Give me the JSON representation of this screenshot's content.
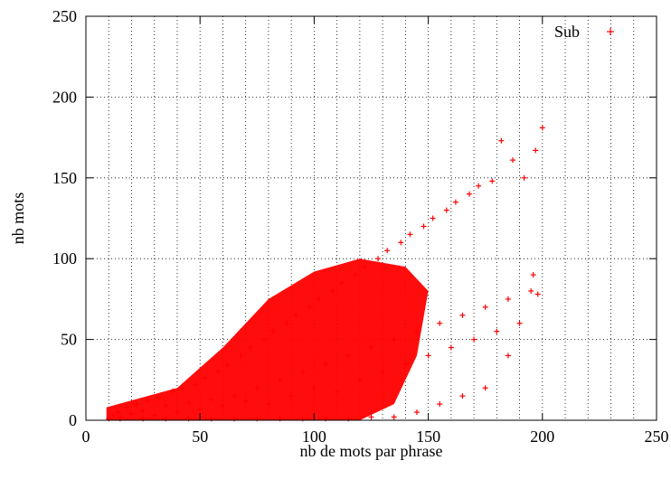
{
  "chart_data": {
    "type": "scatter",
    "title": "",
    "xlabel": "nb de mots par phrase",
    "ylabel": "nb mots",
    "xlim": [
      0,
      250
    ],
    "ylim": [
      0,
      250
    ],
    "x_ticks": [
      0,
      50,
      100,
      150,
      200,
      250
    ],
    "y_ticks": [
      0,
      50,
      100,
      150,
      200,
      250
    ],
    "x_tick_labels": [
      "0",
      "50",
      "100",
      "150",
      "200",
      "250"
    ],
    "y_tick_labels": [
      "0",
      "50",
      "100",
      "150",
      "200",
      "250"
    ],
    "grid": "dotted, on",
    "legend_position": "top-right",
    "series": [
      {
        "name": "Sub",
        "color": "#ff0000",
        "marker": "plus",
        "points": [
          [
            10,
            1
          ],
          [
            12,
            3
          ],
          [
            14,
            5
          ],
          [
            15,
            2
          ],
          [
            18,
            8
          ],
          [
            20,
            4
          ],
          [
            22,
            10
          ],
          [
            25,
            6
          ],
          [
            27,
            12
          ],
          [
            30,
            3
          ],
          [
            32,
            14
          ],
          [
            35,
            9
          ],
          [
            38,
            18
          ],
          [
            40,
            5
          ],
          [
            42,
            20
          ],
          [
            45,
            11
          ],
          [
            48,
            22
          ],
          [
            50,
            7
          ],
          [
            52,
            26
          ],
          [
            55,
            13
          ],
          [
            58,
            30
          ],
          [
            60,
            9
          ],
          [
            62,
            34
          ],
          [
            65,
            15
          ],
          [
            68,
            40
          ],
          [
            70,
            12
          ],
          [
            72,
            45
          ],
          [
            75,
            20
          ],
          [
            78,
            50
          ],
          [
            80,
            10
          ],
          [
            82,
            55
          ],
          [
            85,
            25
          ],
          [
            88,
            60
          ],
          [
            90,
            15
          ],
          [
            92,
            65
          ],
          [
            95,
            30
          ],
          [
            98,
            70
          ],
          [
            100,
            20
          ],
          [
            102,
            75
          ],
          [
            105,
            35
          ],
          [
            108,
            80
          ],
          [
            110,
            18
          ],
          [
            112,
            85
          ],
          [
            115,
            40
          ],
          [
            118,
            90
          ],
          [
            120,
            25
          ],
          [
            122,
            95
          ],
          [
            125,
            45
          ],
          [
            128,
            100
          ],
          [
            130,
            30
          ],
          [
            132,
            105
          ],
          [
            135,
            50
          ],
          [
            138,
            110
          ],
          [
            140,
            35
          ],
          [
            142,
            115
          ],
          [
            145,
            55
          ],
          [
            148,
            120
          ],
          [
            150,
            40
          ],
          [
            152,
            125
          ],
          [
            155,
            60
          ],
          [
            158,
            130
          ],
          [
            160,
            45
          ],
          [
            162,
            135
          ],
          [
            165,
            65
          ],
          [
            168,
            140
          ],
          [
            170,
            50
          ],
          [
            172,
            145
          ],
          [
            175,
            70
          ],
          [
            178,
            148
          ],
          [
            180,
            55
          ],
          [
            182,
            173
          ],
          [
            185,
            75
          ],
          [
            187,
            161
          ],
          [
            190,
            60
          ],
          [
            192,
            150
          ],
          [
            195,
            80
          ],
          [
            197,
            167
          ],
          [
            200,
            181
          ],
          [
            196,
            90
          ],
          [
            198,
            78
          ],
          [
            185,
            40
          ],
          [
            175,
            20
          ],
          [
            165,
            15
          ],
          [
            155,
            10
          ],
          [
            145,
            5
          ],
          [
            135,
            2
          ],
          [
            125,
            2
          ],
          [
            115,
            1
          ],
          [
            105,
            1
          ],
          [
            95,
            1
          ],
          [
            85,
            1
          ],
          [
            75,
            1
          ],
          [
            65,
            1
          ],
          [
            55,
            1
          ],
          [
            45,
            1
          ],
          [
            35,
            1
          ],
          [
            25,
            1
          ],
          [
            15,
            1
          ]
        ]
      }
    ],
    "fill_regions": [
      {
        "name": "dense-region",
        "color": "#ff0000",
        "polygon": [
          [
            9,
            0
          ],
          [
            9,
            8
          ],
          [
            40,
            20
          ],
          [
            60,
            45
          ],
          [
            80,
            75
          ],
          [
            100,
            92
          ],
          [
            120,
            100
          ],
          [
            140,
            95
          ],
          [
            150,
            80
          ],
          [
            145,
            40
          ],
          [
            135,
            10
          ],
          [
            120,
            0
          ]
        ]
      }
    ]
  }
}
